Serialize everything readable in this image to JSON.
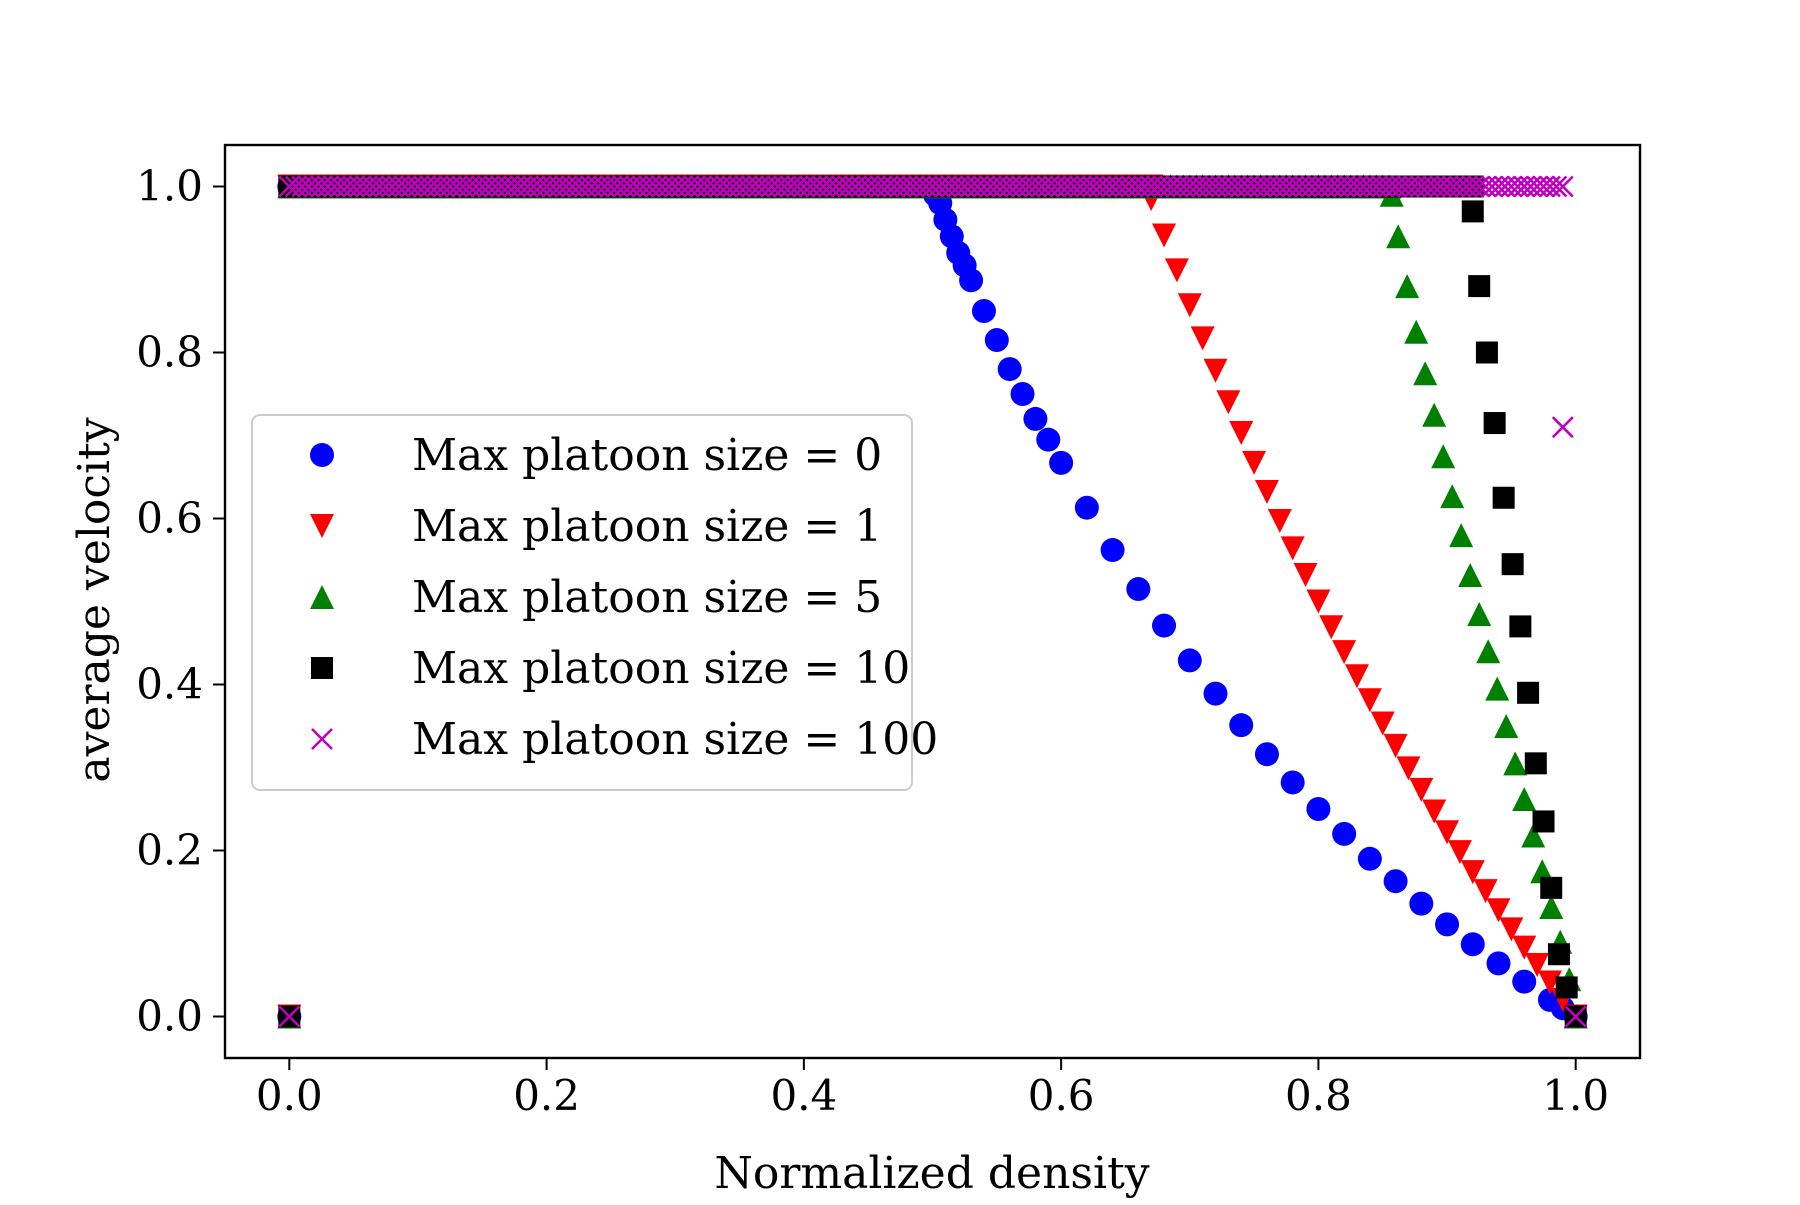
{
  "chart_data": {
    "type": "scatter",
    "title": "",
    "xlabel": "Normalized density",
    "ylabel": "average velocity",
    "xlim": [
      -0.05,
      1.05
    ],
    "ylim": [
      -0.05,
      1.05
    ],
    "xticks": [
      0.0,
      0.2,
      0.4,
      0.6,
      0.8,
      1.0
    ],
    "xtick_labels": [
      "0.0",
      "0.2",
      "0.4",
      "0.6",
      "0.8",
      "1.0"
    ],
    "yticks": [
      0.0,
      0.2,
      0.4,
      0.6,
      0.8,
      1.0
    ],
    "ytick_labels": [
      "0.0",
      "0.2",
      "0.4",
      "0.6",
      "0.8",
      "1.0"
    ],
    "grid": false,
    "legend_position": "center-left",
    "series": [
      {
        "name": "Max platoon size = 0",
        "color": "#0000ff",
        "marker": "circle",
        "x": [
          0.0,
          0.5,
          0.502,
          0.506,
          0.51,
          0.515,
          0.52,
          0.525,
          0.53,
          0.54,
          0.55,
          0.56,
          0.57,
          0.58,
          0.59,
          0.6,
          0.62,
          0.64,
          0.66,
          0.68,
          0.7,
          0.72,
          0.74,
          0.76,
          0.78,
          0.8,
          0.82,
          0.84,
          0.86,
          0.88,
          0.9,
          0.92,
          0.94,
          0.96,
          0.98,
          0.99,
          1.0
        ],
        "y": [
          0.0,
          1.0,
          0.99,
          0.98,
          0.96,
          0.94,
          0.92,
          0.905,
          0.887,
          0.85,
          0.815,
          0.78,
          0.75,
          0.72,
          0.695,
          0.667,
          0.613,
          0.562,
          0.515,
          0.471,
          0.429,
          0.389,
          0.351,
          0.316,
          0.282,
          0.25,
          0.22,
          0.19,
          0.163,
          0.136,
          0.111,
          0.087,
          0.064,
          0.042,
          0.02,
          0.01,
          0.0
        ]
      },
      {
        "name": "Max platoon size = 1",
        "color": "#ff0000",
        "marker": "triangle-down",
        "x": [
          0.0,
          0.67,
          0.68,
          0.69,
          0.7,
          0.71,
          0.72,
          0.73,
          0.74,
          0.75,
          0.76,
          0.77,
          0.78,
          0.79,
          0.8,
          0.81,
          0.82,
          0.83,
          0.84,
          0.85,
          0.86,
          0.87,
          0.88,
          0.89,
          0.9,
          0.91,
          0.92,
          0.93,
          0.94,
          0.95,
          0.96,
          0.97,
          0.98,
          0.99,
          1.0
        ],
        "y": [
          0.0,
          0.985,
          0.941,
          0.899,
          0.857,
          0.817,
          0.778,
          0.74,
          0.703,
          0.667,
          0.632,
          0.597,
          0.564,
          0.532,
          0.5,
          0.469,
          0.439,
          0.41,
          0.381,
          0.353,
          0.326,
          0.299,
          0.273,
          0.247,
          0.222,
          0.198,
          0.174,
          0.151,
          0.128,
          0.105,
          0.083,
          0.062,
          0.041,
          0.02,
          0.0
        ]
      },
      {
        "name": "Max platoon size = 5",
        "color": "#008000",
        "marker": "triangle-up",
        "x": [
          0.0,
          0.857,
          0.862,
          0.869,
          0.876,
          0.883,
          0.89,
          0.897,
          0.904,
          0.911,
          0.918,
          0.925,
          0.932,
          0.939,
          0.946,
          0.953,
          0.96,
          0.967,
          0.974,
          0.981,
          0.988,
          0.995,
          1.0
        ],
        "y": [
          0.0,
          0.99,
          0.94,
          0.88,
          0.825,
          0.775,
          0.725,
          0.675,
          0.627,
          0.58,
          0.532,
          0.485,
          0.44,
          0.395,
          0.35,
          0.305,
          0.262,
          0.218,
          0.175,
          0.132,
          0.09,
          0.045,
          0.0
        ]
      },
      {
        "name": "Max platoon size = 10",
        "color": "#000000",
        "marker": "square",
        "x": [
          0.0,
          0.92,
          0.925,
          0.931,
          0.937,
          0.944,
          0.951,
          0.957,
          0.963,
          0.969,
          0.975,
          0.981,
          0.987,
          0.993,
          1.0
        ],
        "y": [
          0.0,
          0.97,
          0.88,
          0.8,
          0.715,
          0.625,
          0.545,
          0.47,
          0.39,
          0.305,
          0.235,
          0.155,
          0.075,
          0.035,
          0.0
        ]
      },
      {
        "name": "Max platoon size = 100",
        "color": "#bf00bf",
        "marker": "x",
        "x": [
          0.0,
          0.99,
          1.0
        ],
        "y": [
          0.0,
          0.71,
          0.0
        ]
      }
    ],
    "plateau": {
      "y": 1.0,
      "step": 0.005,
      "x_start": [
        0.0,
        0.0,
        0.0,
        0.0,
        0.0
      ],
      "x_end": [
        0.5,
        0.67,
        0.857,
        0.92,
        0.99
      ]
    }
  }
}
